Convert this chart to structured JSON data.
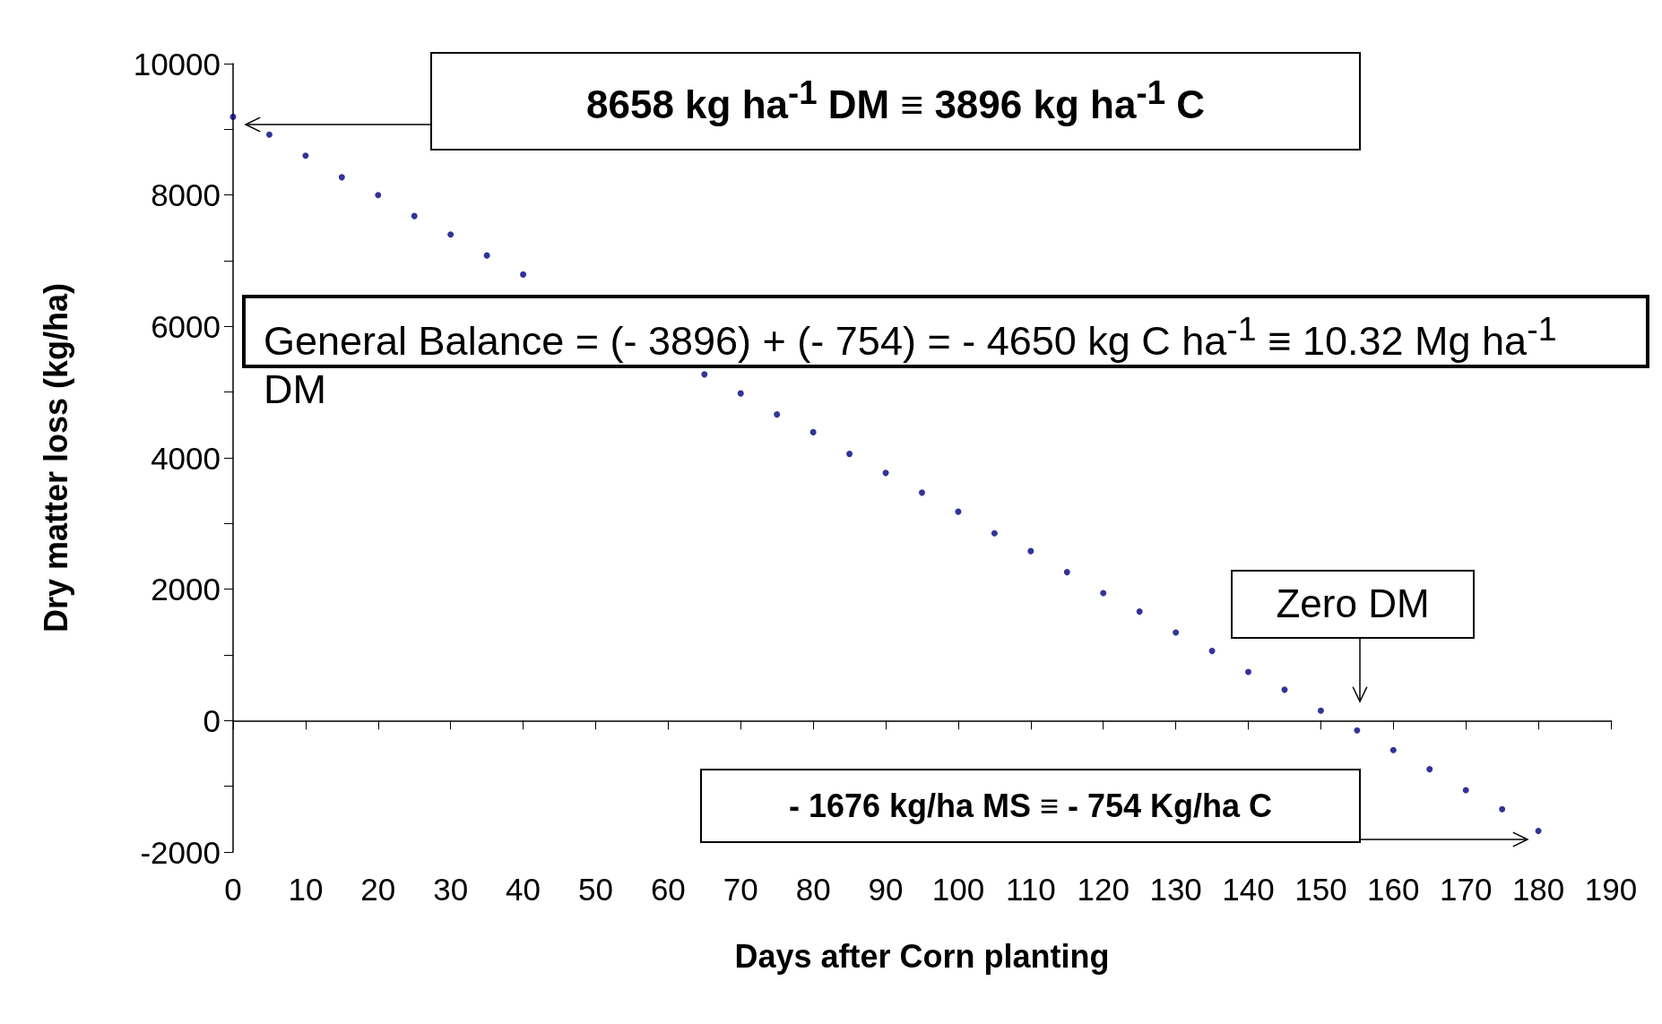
{
  "chart_data": {
    "type": "scatter",
    "xlabel": "Days after Corn planting",
    "ylabel": "Dry matter loss (kg/ha)",
    "x": [
      0,
      5,
      10,
      15,
      20,
      25,
      30,
      35,
      40,
      45,
      50,
      55,
      60,
      65,
      70,
      75,
      80,
      85,
      90,
      95,
      100,
      105,
      110,
      115,
      120,
      125,
      130,
      135,
      140,
      145,
      150,
      155,
      160,
      165,
      170,
      175,
      180
    ],
    "series": [
      {
        "color": "#000080",
        "values": [
          9190,
          8920,
          8600,
          8270,
          8000,
          7680,
          7400,
          7080,
          6790,
          null,
          null,
          null,
          null,
          5270,
          4980,
          4660,
          4390,
          4060,
          3770,
          3470,
          3180,
          2850,
          2580,
          2260,
          1940,
          1660,
          1340,
          1060,
          740,
          470,
          150,
          -150,
          -450,
          -740,
          -1060,
          -1350,
          -1680
        ]
      }
    ],
    "xlim": [
      0,
      190
    ],
    "xticks": [
      0,
      10,
      20,
      30,
      40,
      50,
      60,
      70,
      80,
      90,
      100,
      110,
      120,
      130,
      140,
      150,
      160,
      170,
      180,
      190
    ],
    "ylim": [
      -2000,
      10000
    ],
    "yticks": [
      -2000,
      {
        "value": -1000,
        "label": null
      },
      0,
      {
        "value": 1000,
        "label": null
      },
      2000,
      {
        "value": 3000,
        "label": null
      },
      4000,
      {
        "value": 5000,
        "label": null
      },
      6000,
      {
        "value": 7000,
        "label": null
      },
      8000,
      {
        "value": 9000,
        "label": null
      },
      10000
    ],
    "annotations": [
      "8658 kg ha$^{-1}$ DM ≡ 3896 kg ha$^{-1}$ C",
      "General Balance = (- 3896) + (- 754) = - 4650 kg C ha$^{-1}$ ≡ 10.32 Mg ha$^{-1}$ DM",
      "Zero DM",
      "- 1676 kg/ha MS ≡ - 754 Kg/ha C"
    ],
    "marker": "circle"
  }
}
